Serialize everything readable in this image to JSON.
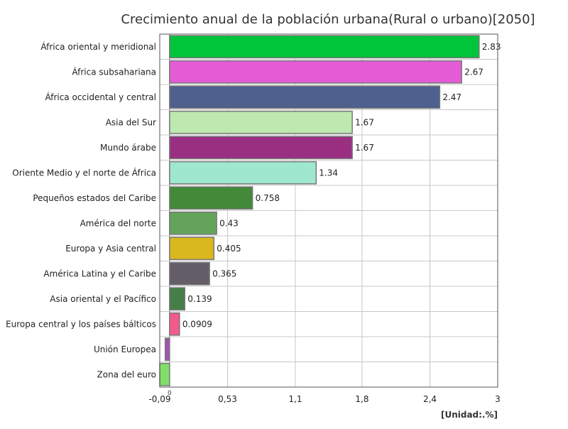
{
  "chart_data": {
    "type": "bar",
    "orientation": "horizontal",
    "title": "Crecimiento anual de la población urbana(Rural o urbano)[2050]",
    "unit_label": "[Unidad:.%]",
    "xlim": [
      -0.09,
      3
    ],
    "x_ticks": [
      "-0,09",
      "0,53",
      "1,1",
      "1,8",
      "2,4",
      "3"
    ],
    "x_tick_values": [
      -0.09,
      0.53,
      1.15,
      1.76,
      2.38,
      3.0
    ],
    "zero_label": "0",
    "grid": true,
    "categories": [
      "África oriental y meridional",
      "África subsahariana",
      "África occidental y central",
      "Asia del Sur",
      "Mundo árabe",
      "Oriente Medio y el norte de África",
      "Pequeños estados del Caribe",
      "América del norte",
      "Europa y Asia central",
      "América Latina y el Caribe",
      "Asia oriental y el Pacífico",
      "Europa central y los países bálticos",
      "Unión Europea",
      "Zona del euro"
    ],
    "values": [
      2.83,
      2.67,
      2.47,
      1.67,
      1.67,
      1.34,
      0.758,
      0.43,
      0.405,
      0.365,
      0.139,
      0.0909,
      -0.04,
      -0.09
    ],
    "value_labels": [
      "2.83",
      "2.67",
      "2.47",
      "1.67",
      "1.67",
      "1.34",
      "0.758",
      "0.43",
      "0.405",
      "0.365",
      "0.139",
      "0.0909",
      "",
      ""
    ],
    "colors": [
      "#00c43a",
      "#e35cd6",
      "#4f5f8e",
      "#bde8b0",
      "#9a2f82",
      "#9fe8cf",
      "#428a38",
      "#63a45a",
      "#d9b81e",
      "#645e68",
      "#467e48",
      "#f25a8a",
      "#a451b3",
      "#7fe065"
    ]
  }
}
